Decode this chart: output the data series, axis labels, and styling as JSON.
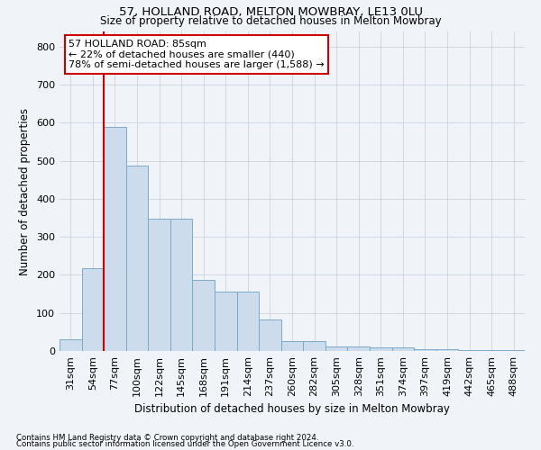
{
  "title1": "57, HOLLAND ROAD, MELTON MOWBRAY, LE13 0LU",
  "title2": "Size of property relative to detached houses in Melton Mowbray",
  "xlabel": "Distribution of detached houses by size in Melton Mowbray",
  "ylabel": "Number of detached properties",
  "categories": [
    "31sqm",
    "54sqm",
    "77sqm",
    "100sqm",
    "122sqm",
    "145sqm",
    "168sqm",
    "191sqm",
    "214sqm",
    "237sqm",
    "260sqm",
    "282sqm",
    "305sqm",
    "328sqm",
    "351sqm",
    "374sqm",
    "397sqm",
    "419sqm",
    "442sqm",
    "465sqm",
    "488sqm"
  ],
  "values": [
    30,
    218,
    590,
    487,
    347,
    347,
    188,
    155,
    155,
    83,
    27,
    27,
    13,
    13,
    10,
    10,
    5,
    5,
    2,
    2,
    2
  ],
  "bar_color": "#ccdcec",
  "bar_edge_color": "#7aaac8",
  "vline_x_index": 2,
  "vline_color": "#cc0000",
  "annotation_text": "57 HOLLAND ROAD: 85sqm\n← 22% of detached houses are smaller (440)\n78% of semi-detached houses are larger (1,588) →",
  "annotation_box_color": "#ffffff",
  "annotation_box_edge_color": "#cc0000",
  "footer1": "Contains HM Land Registry data © Crown copyright and database right 2024.",
  "footer2": "Contains public sector information licensed under the Open Government Licence v3.0.",
  "ylim": [
    0,
    840
  ],
  "yticks": [
    0,
    100,
    200,
    300,
    400,
    500,
    600,
    700,
    800
  ],
  "background_color": "#f0f4f8",
  "grid_color": "#c8d4e0"
}
